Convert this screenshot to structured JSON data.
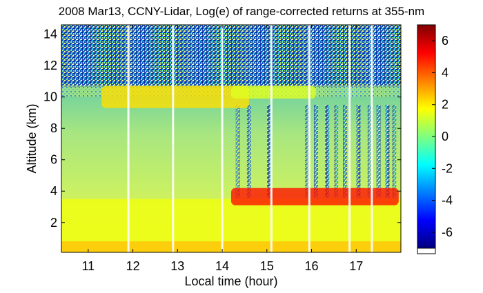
{
  "chart_data": {
    "type": "heatmap",
    "title": "2008 Mar13, CCNY-Lidar, Log(e) of range-corrected returns at 355-nm",
    "xlabel": "Local time (hour)",
    "ylabel": "Altitude (km)",
    "xlim": [
      10.4,
      18.0
    ],
    "ylim": [
      0.1,
      14.6
    ],
    "x_ticks": [
      11,
      12,
      13,
      14,
      15,
      16,
      17
    ],
    "y_ticks": [
      2,
      4,
      6,
      8,
      10,
      12,
      14
    ],
    "colorbar": {
      "min": -7,
      "max": 7,
      "ticks": [
        -6,
        -4,
        -2,
        0,
        2,
        4,
        6
      ],
      "colormap": "jet"
    },
    "data_gaps_hours": [
      11.9,
      12.9,
      14.0,
      15.1,
      15.95,
      16.85,
      17.35
    ],
    "layers": [
      {
        "feature": "near-surface layer",
        "altitude_km": [
          0.1,
          0.8
        ],
        "log_value": 2.5
      },
      {
        "feature": "boundary layer",
        "altitude_km": [
          0.8,
          3.5
        ],
        "log_value": 1.5
      },
      {
        "feature": "cloud layer",
        "time_hours": [
          11.3,
          14.6
        ],
        "altitude_km": [
          9.3,
          10.7
        ],
        "log_value": 2.2
      },
      {
        "feature": "cloud layer",
        "time_hours": [
          14.2,
          16.1
        ],
        "altitude_km": [
          9.9,
          10.7
        ],
        "log_value": 1.3
      },
      {
        "feature": "low cloud",
        "time_hours": [
          14.2,
          17.95
        ],
        "altitude_km": [
          3.1,
          4.2
        ],
        "log_value": 5.0
      }
    ]
  }
}
